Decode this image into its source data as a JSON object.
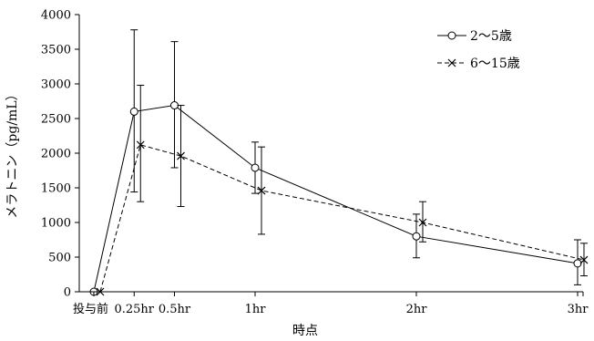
{
  "chart_data": {
    "type": "line",
    "title": "",
    "xlabel": "時点",
    "ylabel": "メラトニン（pg/mL）",
    "categories": [
      "投与前",
      "0.25hr",
      "0.5hr",
      "1hr",
      "2hr",
      "3hr"
    ],
    "x_hours": [
      0,
      0.25,
      0.5,
      1,
      2,
      3
    ],
    "ylim": [
      0,
      4000
    ],
    "yticks": [
      0,
      500,
      1000,
      1500,
      2000,
      2500,
      3000,
      3500,
      4000
    ],
    "grid": false,
    "legend_position": "top-right",
    "series": [
      {
        "name": "2～5歳",
        "marker": "circle",
        "line_style": "solid",
        "values": [
          0,
          2600,
          2690,
          1790,
          800,
          410
        ],
        "error_low": [
          0,
          1440,
          1790,
          1420,
          490,
          100
        ],
        "error_high": [
          0,
          3780,
          3610,
          2160,
          1120,
          750
        ]
      },
      {
        "name": "6～15歳",
        "marker": "x",
        "line_style": "dashed",
        "values": [
          0,
          2120,
          1960,
          1460,
          1000,
          460
        ],
        "error_low": [
          0,
          1300,
          1230,
          830,
          720,
          230
        ],
        "error_high": [
          0,
          2980,
          2690,
          2090,
          1300,
          700
        ]
      }
    ]
  }
}
